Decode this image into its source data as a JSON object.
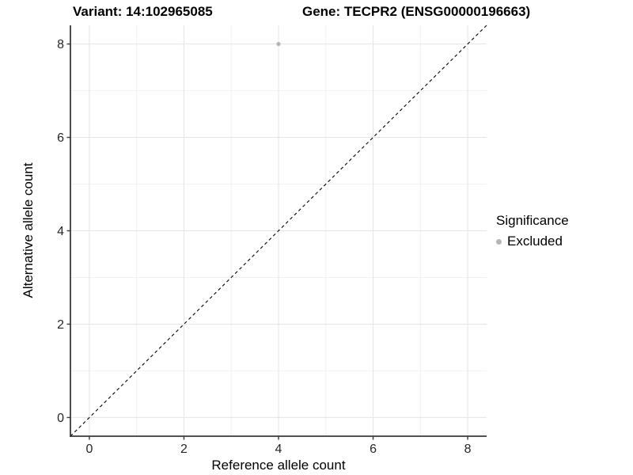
{
  "header": {
    "variant_title": "Variant: 14:102965085",
    "gene_title": "Gene: TECPR2 (ENSG00000196663)"
  },
  "legend": {
    "title": "Significance",
    "items": [
      {
        "label": "Excluded",
        "color": "#b5b5b5"
      }
    ],
    "position": "right"
  },
  "chart_data": {
    "type": "scatter",
    "title": "Variant: 14:102965085  /  Gene: TECPR2 (ENSG00000196663)",
    "xlabel": "Reference allele count",
    "ylabel": "Alternative allele count",
    "xlim": [
      -0.4,
      8.4
    ],
    "ylim": [
      -0.4,
      8.4
    ],
    "x_major_ticks": [
      0,
      2,
      4,
      6,
      8
    ],
    "y_major_ticks": [
      0,
      2,
      4,
      6,
      8
    ],
    "x_minor_gridlines": [
      1,
      3,
      5,
      7
    ],
    "y_minor_gridlines": [
      1,
      3,
      5,
      7
    ],
    "grid": "on",
    "reference_line": {
      "kind": "identity",
      "equation": "y = x",
      "style": "dashed",
      "color": "#000000"
    },
    "series": [
      {
        "name": "Excluded",
        "color": "#b5b5b5",
        "points": [
          {
            "x": 4,
            "y": 8
          }
        ]
      }
    ],
    "legend_position": "right-middle"
  },
  "colors": {
    "background": "#ffffff",
    "grid_major": "#e4e4e4",
    "grid_minor": "#f1f1f1",
    "axis_line": "#3a3a3a",
    "tick_text": "#262626",
    "reference_line": "#000000",
    "excluded_point": "#b5b5b5"
  }
}
